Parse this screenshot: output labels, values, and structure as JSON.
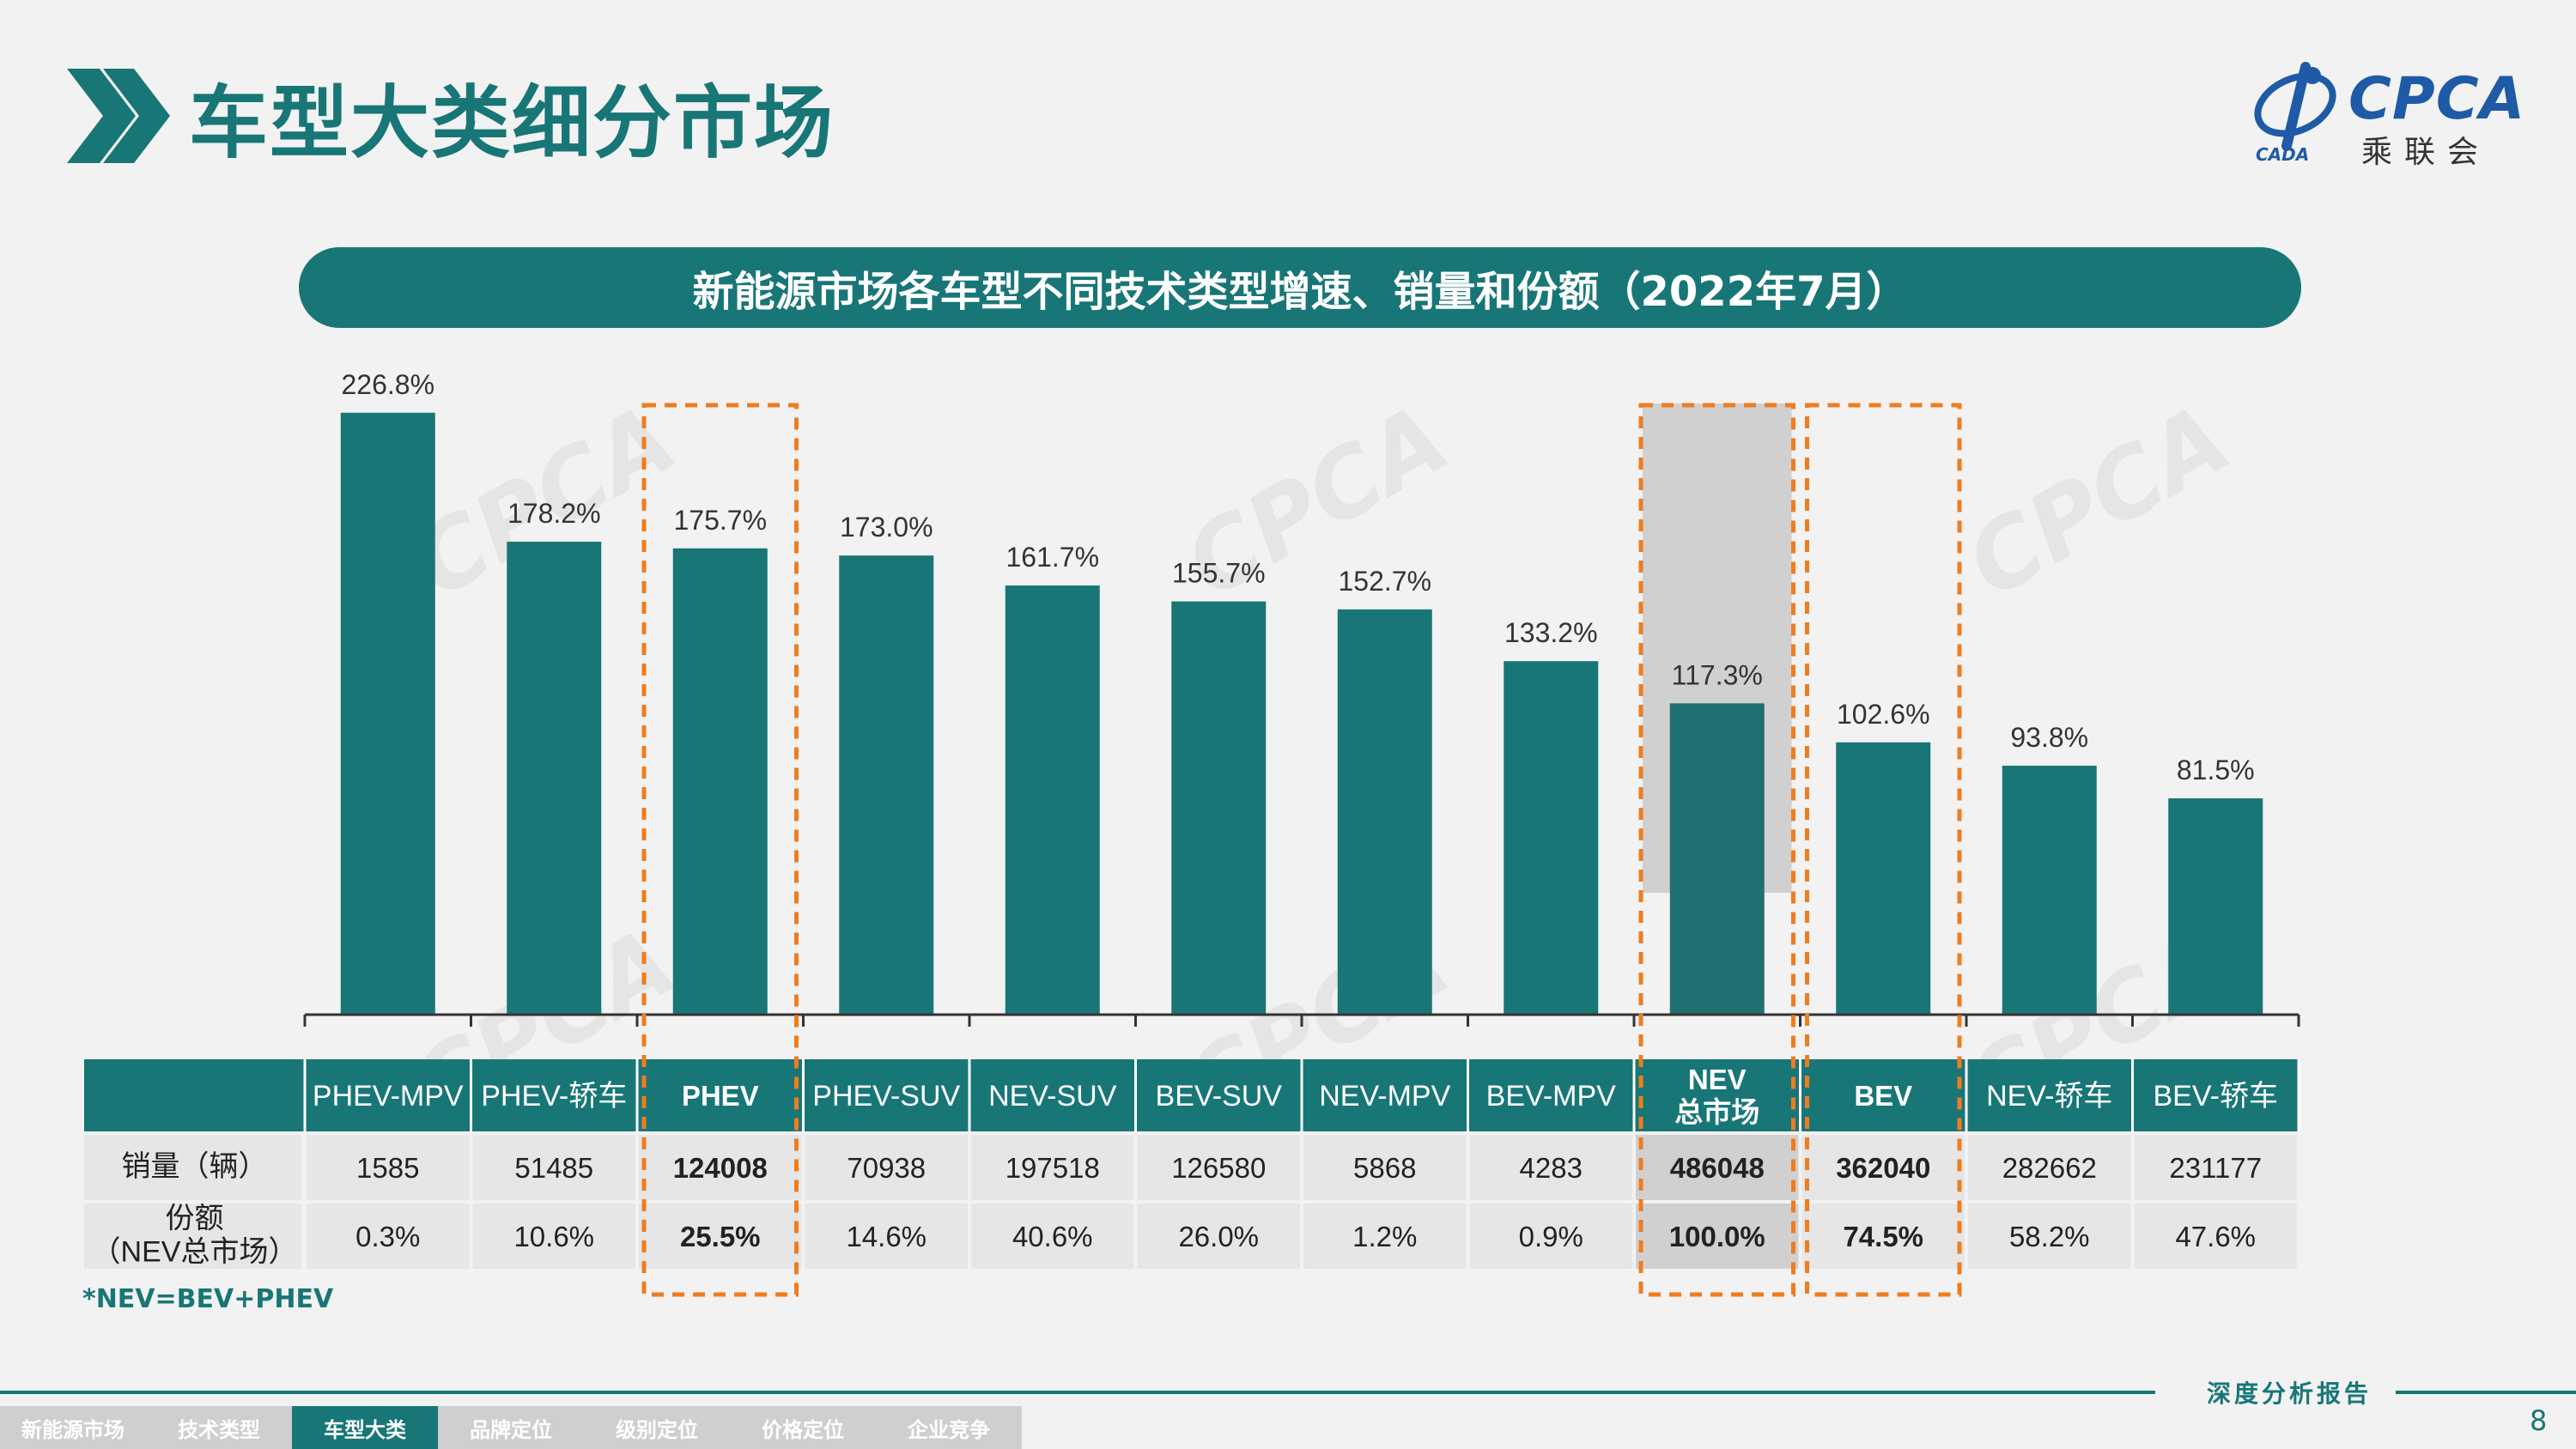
{
  "page": {
    "title": "车型大类细分市场",
    "banner": "新能源市场各车型不同技术类型增速、销量和份额（2022年7月）",
    "footnote": "*NEV=BEV+PHEV",
    "report_label": "深度分析报告",
    "page_number": "8",
    "logo_brand": "CPCA",
    "logo_sub": "乘联会",
    "logo_small": "CADA",
    "watermark": "CPCA"
  },
  "nav": {
    "items": [
      "新能源市场",
      "技术类型",
      "车型大类",
      "品牌定位",
      "级别定位",
      "价格定位",
      "企业竞争"
    ],
    "active_index": 2
  },
  "colors": {
    "bar": "#187677",
    "bar_total": "#1f7071",
    "highlight_border": "#f07c1e",
    "total_bg": "#d0d0d0",
    "header_bg": "#187677"
  },
  "chart_data": {
    "type": "bar",
    "categories": [
      "PHEV-MPV",
      "PHEV-轿车",
      "PHEV",
      "PHEV-SUV",
      "NEV-SUV",
      "BEV-SUV",
      "NEV-MPV",
      "BEV-MPV",
      "NEV\n总市场",
      "BEV",
      "NEV-轿车",
      "BEV-轿车"
    ],
    "series": [
      {
        "values": [
          226.8,
          178.2,
          175.7,
          173.0,
          161.7,
          155.7,
          152.7,
          133.2,
          117.3,
          102.6,
          93.8,
          81.5
        ],
        "labels": [
          "226.8%",
          "178.2%",
          "175.7%",
          "173.0%",
          "161.7%",
          "155.7%",
          "152.7%",
          "133.2%",
          "117.3%",
          "102.6%",
          "93.8%",
          "81.5%"
        ]
      }
    ],
    "ylim": [
      0,
      240
    ],
    "grid": false,
    "highlighted_categories": [
      "PHEV",
      "BEV"
    ],
    "total_category": "NEV\n总市场",
    "bold_categories": [
      "PHEV",
      "NEV\n总市场",
      "BEV"
    ],
    "table": {
      "rows": [
        {
          "label": "销量（辆）",
          "values": [
            "1585",
            "51485",
            "124008",
            "70938",
            "197518",
            "126580",
            "5868",
            "4283",
            "486048",
            "362040",
            "282662",
            "231177"
          ]
        },
        {
          "label": "份额\n（NEV总市场）",
          "values": [
            "0.3%",
            "10.6%",
            "25.5%",
            "14.6%",
            "40.6%",
            "26.0%",
            "1.2%",
            "0.9%",
            "100.0%",
            "74.5%",
            "58.2%",
            "47.6%"
          ]
        }
      ]
    }
  }
}
